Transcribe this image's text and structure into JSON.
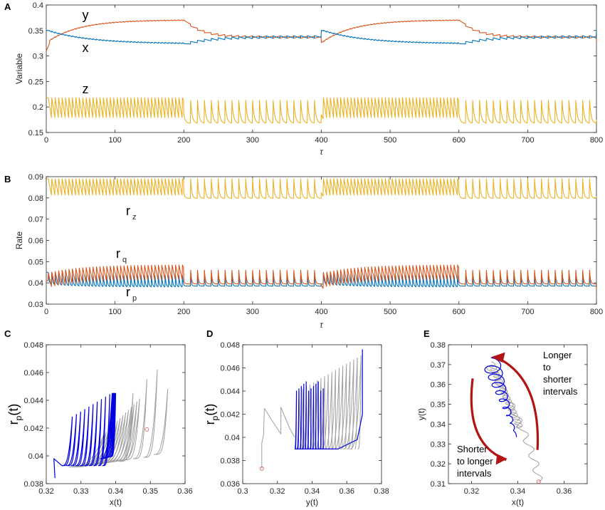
{
  "colors": {
    "x": "#0072BD",
    "y": "#D95319",
    "z": "#EDB120",
    "gray": "#A0A0A0",
    "blue": "#0000E0",
    "arrow": "#B21414",
    "marker": "#E06060"
  },
  "chart_data": [
    {
      "panel": "A",
      "type": "line",
      "xlabel": "τ",
      "ylabel": "Variable",
      "xlim": [
        0,
        800
      ],
      "ylim": [
        0.15,
        0.4
      ],
      "xticks": [
        "0",
        "100",
        "200",
        "300",
        "400",
        "500",
        "600",
        "700",
        "800"
      ],
      "yticks": [
        "0.15",
        "0.2",
        "0.25",
        "0.3",
        "0.35",
        "0.4"
      ],
      "series": [
        {
          "name": "y",
          "description_values": {
            "start": 0.31,
            "plateau": 0.37,
            "min": 0.33
          }
        },
        {
          "name": "x",
          "description_values": {
            "start": 0.35,
            "plateau": 0.325,
            "min": 0.32
          }
        },
        {
          "name": "z",
          "description_values": {
            "min": 0.17,
            "max": 0.22
          }
        }
      ],
      "labels": [
        "y",
        "x",
        "z"
      ]
    },
    {
      "panel": "B",
      "type": "line",
      "xlabel": "τ",
      "ylabel": "Rate",
      "xlim": [
        0,
        800
      ],
      "ylim": [
        0.03,
        0.09
      ],
      "xticks": [
        "0",
        "100",
        "200",
        "300",
        "400",
        "500",
        "600",
        "700",
        "800"
      ],
      "yticks": [
        "0.03",
        "0.04",
        "0.05",
        "0.06",
        "0.07",
        "0.08",
        "0.09"
      ],
      "labels": [
        "r",
        "z",
        "r",
        "q",
        "r",
        "p"
      ]
    },
    {
      "panel": "C",
      "type": "line",
      "xlabel": "x(t)",
      "ylabel": "r",
      "ylabel_sub": "p",
      "ylabel_suffix": "(t)",
      "xlim": [
        0.32,
        0.36
      ],
      "ylim": [
        0.038,
        0.048
      ],
      "xticks": [
        "0.32",
        "0.33",
        "0.34",
        "0.35",
        "0.36"
      ],
      "yticks": [
        "0.038",
        "0.04",
        "0.042",
        "0.044",
        "0.046",
        "0.048"
      ]
    },
    {
      "panel": "D",
      "type": "line",
      "xlabel": "y(t)",
      "ylabel": "r",
      "ylabel_sub": "p",
      "ylabel_suffix": "(t)",
      "xlim": [
        0.3,
        0.38
      ],
      "ylim": [
        0.036,
        0.048
      ],
      "xticks": [
        "0.3",
        "0.32",
        "0.34",
        "0.36",
        "0.38"
      ],
      "yticks": [
        "0.036",
        "0.038",
        "0.04",
        "0.042",
        "0.044",
        "0.046",
        "0.048"
      ]
    },
    {
      "panel": "E",
      "type": "line",
      "xlabel": "x(t)",
      "ylabel": "y(t)",
      "xlim": [
        0.31,
        0.37
      ],
      "ylim": [
        0.31,
        0.38
      ],
      "xticks": [
        "0.32",
        "0.34",
        "0.36"
      ],
      "yticks": [
        "0.31",
        "0.32",
        "0.33",
        "0.34",
        "0.35",
        "0.36",
        "0.37",
        "0.38"
      ],
      "annotations": [
        [
          "Longer",
          "to",
          "shorter",
          "intervals"
        ],
        [
          "Shorter",
          "to longer",
          "intervals"
        ]
      ]
    }
  ]
}
